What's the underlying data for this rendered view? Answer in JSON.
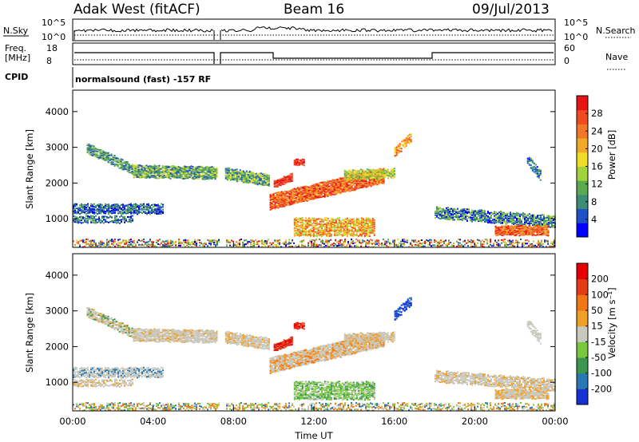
{
  "header": {
    "station": "Adak West (fitACF)",
    "beam": "Beam 16",
    "date": "09/Jul/2013"
  },
  "top_panels": {
    "nsky_label": "N.Sky",
    "nsky_ticks": [
      "10^5",
      "10^0"
    ],
    "nsearch_label": "N.Search",
    "freq_label_1": "Freq.",
    "freq_label_2": "[MHz]",
    "freq_ticks": [
      "18",
      "8"
    ],
    "nave_label": "Nave",
    "nave_ticks": [
      "60",
      "0"
    ],
    "cpid_label": "CPID",
    "cpid_text": "normalsound (fast) -157 RF"
  },
  "chart_data": [
    {
      "type": "heatmap",
      "name": "power",
      "ylabel": "Slant Range [km]",
      "ylim": [
        200,
        4600
      ],
      "yticks": [
        "4000",
        "3000",
        "2000",
        "1000"
      ],
      "xlim": [
        0,
        24
      ],
      "colorbar": {
        "label": "Power [dB]",
        "ticks": [
          "28",
          "24",
          "20",
          "16",
          "12",
          "8",
          "4"
        ],
        "colors": [
          "#0000ff",
          "#1e50c8",
          "#3c8c78",
          "#5aaa50",
          "#a0d23c",
          "#f0dc28",
          "#f0aa28",
          "#f07828",
          "#f04b1e",
          "#e61414"
        ]
      }
    },
    {
      "type": "heatmap",
      "name": "velocity",
      "ylabel": "Slant Range [km]",
      "xlabel": "Time UT",
      "ylim": [
        200,
        4600
      ],
      "yticks": [
        "4000",
        "3000",
        "2000",
        "1000"
      ],
      "xlim": [
        0,
        24
      ],
      "xticks": [
        "00:00",
        "04:00",
        "08:00",
        "12:00",
        "16:00",
        "20:00",
        "00:00"
      ],
      "colorbar": {
        "label": "Velocity [m s⁻¹]",
        "ticks": [
          "200",
          "100",
          "50",
          "15",
          "-15",
          "-50",
          "-100",
          "-200"
        ],
        "colors": [
          "#1432d2",
          "#2878b4",
          "#3c9650",
          "#78c83c",
          "#c8c8be",
          "#f0a028",
          "#f07814",
          "#e63c14",
          "#e60000"
        ]
      }
    }
  ]
}
